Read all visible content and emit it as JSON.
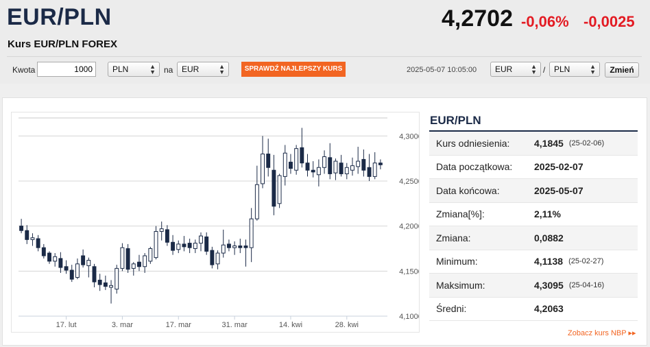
{
  "header": {
    "pair": "EUR/PLN",
    "subtitle": "Kurs EUR/PLN FOREX",
    "price": "4,2702",
    "change_pct": "-0,06%",
    "change_abs": "-0,0025"
  },
  "converter": {
    "amount_label": "Kwota",
    "amount": "1000",
    "from_currency": "PLN",
    "na_label": "na",
    "to_currency": "EUR",
    "check_button": "SPRAWDŹ NAJLEPSZY KURS",
    "timestamp": "2025-05-07 10:05:00",
    "pair_base": "EUR",
    "slash": "/",
    "pair_quote": "PLN",
    "change_button": "Zmień"
  },
  "info": {
    "title": "EUR/PLN",
    "rows": [
      {
        "label": "Kurs odniesienia:",
        "value": "4,1845",
        "date": "(25-02-06)"
      },
      {
        "label": "Data początkowa:",
        "value": "2025-02-07",
        "date": ""
      },
      {
        "label": "Data końcowa:",
        "value": "2025-05-07",
        "date": ""
      },
      {
        "label": "Zmiana[%]:",
        "value": "2,11%",
        "date": ""
      },
      {
        "label": "Zmiana:",
        "value": "0,0882",
        "date": ""
      },
      {
        "label": "Minimum:",
        "value": "4,1138",
        "date": "(25-02-27)"
      },
      {
        "label": "Maksimum:",
        "value": "4,3095",
        "date": "(25-04-16)"
      },
      {
        "label": "Średni:",
        "value": "4,2063",
        "date": ""
      }
    ],
    "nbp_link": "Zobacz kurs NBP ▸▸"
  },
  "colors": {
    "accent": "#f26522",
    "negative": "#e31b23",
    "title": "#1b2a47",
    "candle_up": "#ffffff",
    "candle_down": "#1b2a47"
  },
  "chart_data": {
    "type": "candlestick",
    "ylim": [
      4.1,
      4.32
    ],
    "y_ticks": [
      "4,1000",
      "4,1500",
      "4,2000",
      "4,2500",
      "4,3000"
    ],
    "y_tick_values": [
      4.1,
      4.15,
      4.2,
      4.25,
      4.3
    ],
    "x_ticks": [
      "17. lut",
      "3. mar",
      "17. mar",
      "31. mar",
      "14. kwi",
      "28. kwi"
    ],
    "x_tick_index": [
      8,
      18,
      28,
      38,
      48,
      58
    ],
    "candles": [
      {
        "o": 4.2,
        "h": 4.208,
        "l": 4.192,
        "c": 4.195
      },
      {
        "o": 4.195,
        "h": 4.201,
        "l": 4.18,
        "c": 4.185
      },
      {
        "o": 4.185,
        "h": 4.192,
        "l": 4.178,
        "c": 4.187
      },
      {
        "o": 4.186,
        "h": 4.19,
        "l": 4.172,
        "c": 4.176
      },
      {
        "o": 4.176,
        "h": 4.18,
        "l": 4.164,
        "c": 4.167
      },
      {
        "o": 4.17,
        "h": 4.172,
        "l": 4.158,
        "c": 4.161
      },
      {
        "o": 4.161,
        "h": 4.17,
        "l": 4.155,
        "c": 4.166
      },
      {
        "o": 4.164,
        "h": 4.171,
        "l": 4.148,
        "c": 4.154
      },
      {
        "o": 4.155,
        "h": 4.162,
        "l": 4.147,
        "c": 4.151
      },
      {
        "o": 4.151,
        "h": 4.157,
        "l": 4.138,
        "c": 4.141
      },
      {
        "o": 4.143,
        "h": 4.164,
        "l": 4.141,
        "c": 4.158
      },
      {
        "o": 4.167,
        "h": 4.174,
        "l": 4.154,
        "c": 4.157
      },
      {
        "o": 4.156,
        "h": 4.165,
        "l": 4.143,
        "c": 4.162
      },
      {
        "o": 4.155,
        "h": 4.158,
        "l": 4.132,
        "c": 4.138
      },
      {
        "o": 4.14,
        "h": 4.147,
        "l": 4.128,
        "c": 4.135
      },
      {
        "o": 4.137,
        "h": 4.145,
        "l": 4.129,
        "c": 4.133
      },
      {
        "o": 4.132,
        "h": 4.14,
        "l": 4.114,
        "c": 4.134
      },
      {
        "o": 4.13,
        "h": 4.157,
        "l": 4.125,
        "c": 4.153
      },
      {
        "o": 4.153,
        "h": 4.181,
        "l": 4.15,
        "c": 4.176
      },
      {
        "o": 4.175,
        "h": 4.18,
        "l": 4.148,
        "c": 4.152
      },
      {
        "o": 4.153,
        "h": 4.16,
        "l": 4.145,
        "c": 4.158
      },
      {
        "o": 4.16,
        "h": 4.168,
        "l": 4.15,
        "c": 4.155
      },
      {
        "o": 4.155,
        "h": 4.17,
        "l": 4.148,
        "c": 4.167
      },
      {
        "o": 4.161,
        "h": 4.177,
        "l": 4.158,
        "c": 4.175
      },
      {
        "o": 4.165,
        "h": 4.2,
        "l": 4.163,
        "c": 4.194
      },
      {
        "o": 4.194,
        "h": 4.205,
        "l": 4.184,
        "c": 4.197
      },
      {
        "o": 4.196,
        "h": 4.201,
        "l": 4.178,
        "c": 4.182
      },
      {
        "o": 4.182,
        "h": 4.19,
        "l": 4.168,
        "c": 4.173
      },
      {
        "o": 4.174,
        "h": 4.184,
        "l": 4.17,
        "c": 4.18
      },
      {
        "o": 4.18,
        "h": 4.189,
        "l": 4.172,
        "c": 4.177
      },
      {
        "o": 4.181,
        "h": 4.186,
        "l": 4.17,
        "c": 4.176
      },
      {
        "o": 4.175,
        "h": 4.185,
        "l": 4.17,
        "c": 4.181
      },
      {
        "o": 4.181,
        "h": 4.193,
        "l": 4.172,
        "c": 4.189
      },
      {
        "o": 4.188,
        "h": 4.193,
        "l": 4.168,
        "c": 4.172
      },
      {
        "o": 4.173,
        "h": 4.177,
        "l": 4.153,
        "c": 4.157
      },
      {
        "o": 4.158,
        "h": 4.173,
        "l": 4.152,
        "c": 4.17
      },
      {
        "o": 4.17,
        "h": 4.196,
        "l": 4.165,
        "c": 4.179
      },
      {
        "o": 4.18,
        "h": 4.185,
        "l": 4.172,
        "c": 4.176
      },
      {
        "o": 4.176,
        "h": 4.183,
        "l": 4.168,
        "c": 4.178
      },
      {
        "o": 4.178,
        "h": 4.186,
        "l": 4.17,
        "c": 4.176
      },
      {
        "o": 4.178,
        "h": 4.185,
        "l": 4.155,
        "c": 4.176
      },
      {
        "o": 4.176,
        "h": 4.22,
        "l": 4.16,
        "c": 4.208
      },
      {
        "o": 4.208,
        "h": 4.267,
        "l": 4.206,
        "c": 4.246
      },
      {
        "o": 4.247,
        "h": 4.3,
        "l": 4.242,
        "c": 4.28
      },
      {
        "o": 4.28,
        "h": 4.297,
        "l": 4.255,
        "c": 4.265
      },
      {
        "o": 4.262,
        "h": 4.279,
        "l": 4.212,
        "c": 4.222
      },
      {
        "o": 4.225,
        "h": 4.258,
        "l": 4.22,
        "c": 4.256
      },
      {
        "o": 4.255,
        "h": 4.29,
        "l": 4.245,
        "c": 4.281
      },
      {
        "o": 4.271,
        "h": 4.28,
        "l": 4.258,
        "c": 4.264
      },
      {
        "o": 4.262,
        "h": 4.29,
        "l": 4.257,
        "c": 4.286
      },
      {
        "o": 4.287,
        "h": 4.309,
        "l": 4.265,
        "c": 4.27
      },
      {
        "o": 4.27,
        "h": 4.28,
        "l": 4.255,
        "c": 4.262
      },
      {
        "o": 4.262,
        "h": 4.272,
        "l": 4.254,
        "c": 4.26
      },
      {
        "o": 4.257,
        "h": 4.274,
        "l": 4.244,
        "c": 4.265
      },
      {
        "o": 4.265,
        "h": 4.284,
        "l": 4.258,
        "c": 4.277
      },
      {
        "o": 4.276,
        "h": 4.292,
        "l": 4.252,
        "c": 4.258
      },
      {
        "o": 4.259,
        "h": 4.275,
        "l": 4.251,
        "c": 4.272
      },
      {
        "o": 4.27,
        "h": 4.279,
        "l": 4.255,
        "c": 4.258
      },
      {
        "o": 4.258,
        "h": 4.27,
        "l": 4.252,
        "c": 4.265
      },
      {
        "o": 4.262,
        "h": 4.276,
        "l": 4.256,
        "c": 4.267
      },
      {
        "o": 4.266,
        "h": 4.288,
        "l": 4.258,
        "c": 4.272
      },
      {
        "o": 4.274,
        "h": 4.285,
        "l": 4.255,
        "c": 4.262
      },
      {
        "o": 4.265,
        "h": 4.28,
        "l": 4.25,
        "c": 4.255
      },
      {
        "o": 4.255,
        "h": 4.282,
        "l": 4.252,
        "c": 4.27
      },
      {
        "o": 4.27,
        "h": 4.274,
        "l": 4.263,
        "c": 4.268
      }
    ]
  }
}
